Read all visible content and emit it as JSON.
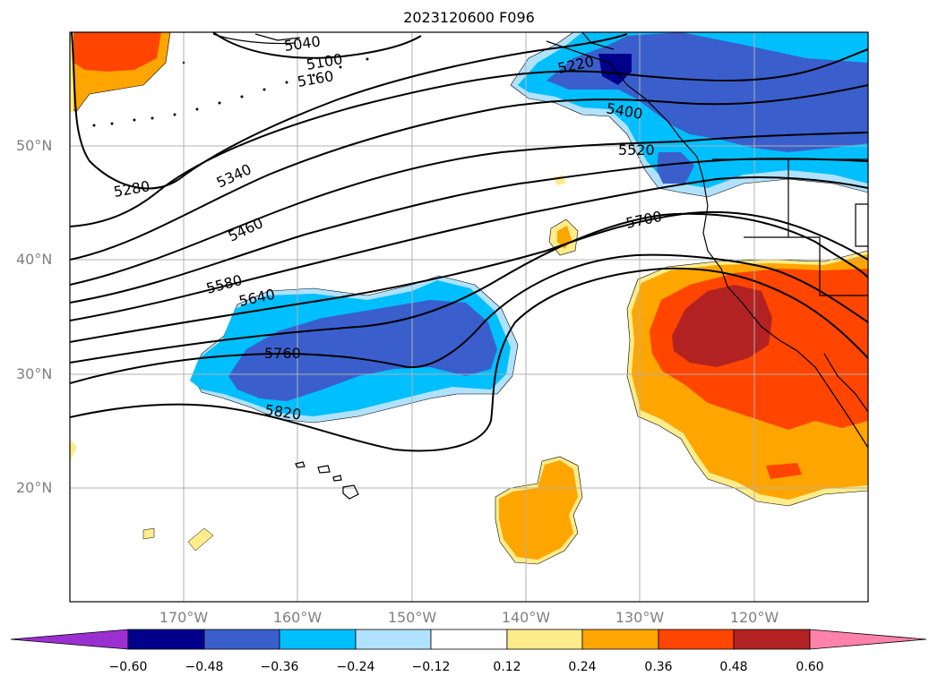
{
  "title": "2023120600 F096",
  "lat_labels": [
    "50°N",
    "40°N",
    "30°N",
    "20°N"
  ],
  "lon_labels": [
    "170°W",
    "160°W",
    "150°W",
    "140°W",
    "130°W",
    "120°W"
  ],
  "contour_labels": [
    "5040",
    "5100",
    "5160",
    "5280",
    "5340",
    "5460",
    "5580",
    "5640",
    "5760",
    "5820",
    "5400",
    "5520",
    "5700",
    "5220"
  ],
  "colorbar": {
    "ticks": [
      "−0.60",
      "−0.48",
      "−0.36",
      "−0.24",
      "−0.12",
      "0.12",
      "0.24",
      "0.36",
      "0.48",
      "0.60"
    ],
    "colors": [
      "#9b30d0",
      "#00008b",
      "#3a5fcd",
      "#00bfff",
      "#b0e2ff",
      "#ffffff",
      "#ffec8b",
      "#ffa500",
      "#ff4500",
      "#b22222",
      "#ff82ab"
    ]
  },
  "colors": {
    "strong_negative": "#3a5fcd",
    "negative": "#00bfff",
    "weak_negative": "#b0e2ff",
    "weak_positive": "#ffec8b",
    "positive": "#ffa500",
    "strong_positive": "#ff4500",
    "very_strong_positive": "#b22222"
  }
}
